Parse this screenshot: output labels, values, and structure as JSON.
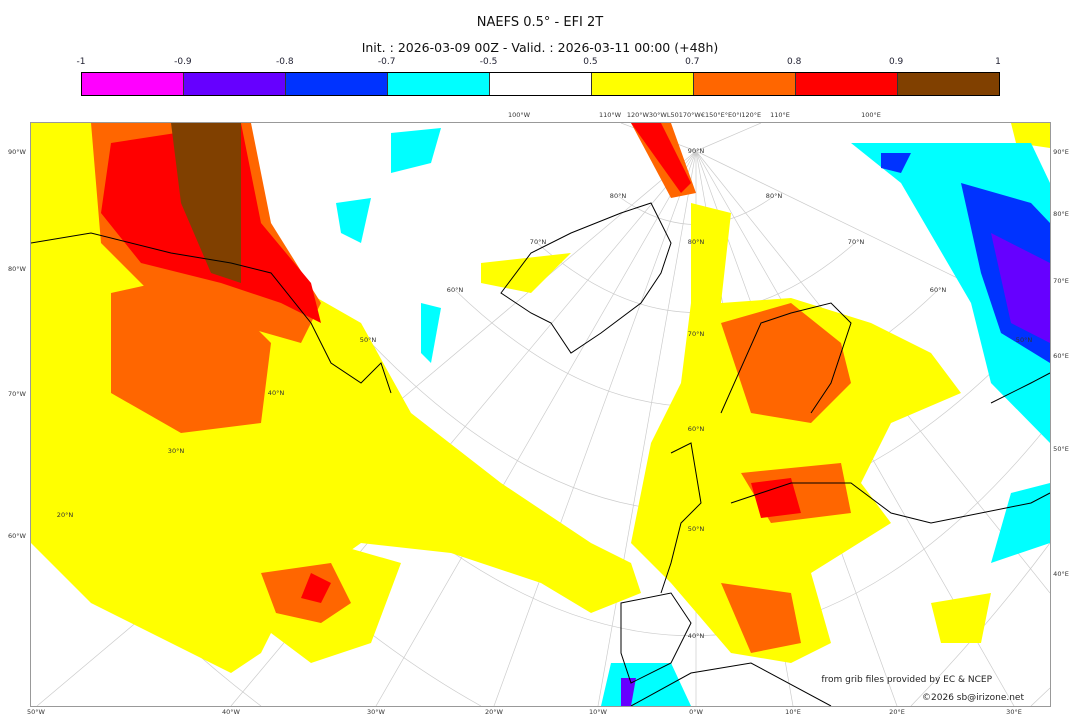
{
  "title": "NAEFS 0.5° - EFI 2T",
  "subtitle": "Init. : 2026-03-09 00Z - Valid. : 2026-03-11 00:00 (+48h)",
  "colorbar": {
    "ticks": [
      "-1",
      "-0.9",
      "-0.8",
      "-0.7",
      "-0.5",
      "0.5",
      "0.7",
      "0.8",
      "0.9",
      "1"
    ],
    "colors": [
      "#ff00ff",
      "#6600ff",
      "#0033ff",
      "#00ffff",
      "#ffffff",
      "#ffff00",
      "#ff6600",
      "#ff0000",
      "#804000"
    ]
  },
  "axes": {
    "left": [
      "90°W",
      "80°W",
      "70°W",
      "60°W"
    ],
    "right": [
      "90°E",
      "80°E",
      "70°E",
      "60°E",
      "50°E",
      "40°E"
    ],
    "bottom": [
      "50°W",
      "40°W",
      "30°W",
      "20°W",
      "10°W",
      "0°W",
      "10°E",
      "20°E",
      "30°E"
    ],
    "top": [
      "100°W",
      "110°W",
      "120°W30°WL50170°W€150°E°E0°I120°E",
      "110°E",
      "100°E"
    ],
    "lat": [
      "90°N",
      "80°N",
      "70°N",
      "60°N",
      "50°N",
      "40°N",
      "80°N",
      "70°N",
      "60°N",
      "50°N",
      "40°N",
      "30°N",
      "20°N",
      "80°N",
      "70°N",
      "60°N",
      "50°N"
    ]
  },
  "credits": {
    "source": "from grib files provided by EC & NCEP",
    "copyright": "©2026 sb@irizone.net"
  }
}
